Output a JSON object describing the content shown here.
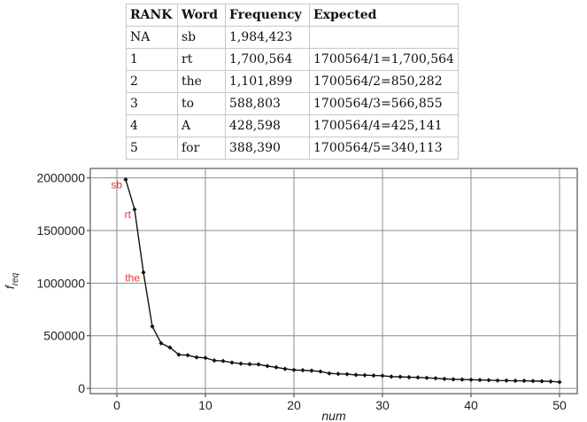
{
  "table": {
    "headers": [
      "RANK",
      "Word",
      "Frequency",
      "Expected"
    ],
    "rows": [
      [
        "NA",
        "sb",
        "1,984,423",
        ""
      ],
      [
        "1",
        "rt",
        "1,700,564",
        "1700564/1=1,700,564"
      ],
      [
        "2",
        "the",
        "1,101,899",
        "1700564/2=850,282"
      ],
      [
        "3",
        "to",
        "588,803",
        "1700564/3=566,855"
      ],
      [
        "4",
        "A",
        "428,598",
        "1700564/4=425,141"
      ],
      [
        "5",
        "for",
        "388,390",
        "1700564/5=340,113"
      ]
    ]
  },
  "chart_data": {
    "type": "line",
    "xlabel": "num",
    "ylabel": "freq",
    "ylabel_main": "f",
    "ylabel_sub": "req",
    "xlim": [
      -3,
      52
    ],
    "ylim": [
      -50000,
      2090000
    ],
    "xticks": [
      0,
      10,
      20,
      30,
      40,
      50
    ],
    "yticks": [
      0,
      500000,
      1000000,
      1500000,
      2000000
    ],
    "grid": true,
    "series": [
      {
        "x": [
          1,
          2,
          3,
          4,
          5,
          6,
          7,
          8,
          9,
          10,
          11,
          12,
          13,
          14,
          15,
          16,
          17,
          18,
          19,
          20,
          21,
          22,
          23,
          24,
          25,
          26,
          27,
          28,
          29,
          30,
          31,
          32,
          33,
          34,
          35,
          36,
          37,
          38,
          39,
          40,
          41,
          42,
          43,
          44,
          45,
          46,
          47,
          48,
          49,
          50
        ],
        "y": [
          1984423,
          1700564,
          1101899,
          588803,
          428598,
          388390,
          320000,
          315000,
          295000,
          290000,
          265000,
          260000,
          245000,
          235000,
          230000,
          228000,
          212000,
          200000,
          185000,
          175000,
          172000,
          168000,
          160000,
          142000,
          138000,
          135000,
          128000,
          125000,
          122000,
          120000,
          112000,
          110000,
          106000,
          104000,
          100000,
          96000,
          90000,
          86000,
          84000,
          82000,
          80000,
          78000,
          75000,
          74000,
          72000,
          72000,
          70000,
          68000,
          66000,
          60000
        ]
      }
    ],
    "annotations": [
      {
        "text": "sb",
        "x": 1,
        "y": 1984423
      },
      {
        "text": "rt",
        "x": 2,
        "y": 1700564
      },
      {
        "text": "the",
        "x": 3,
        "y": 1101899
      }
    ]
  }
}
